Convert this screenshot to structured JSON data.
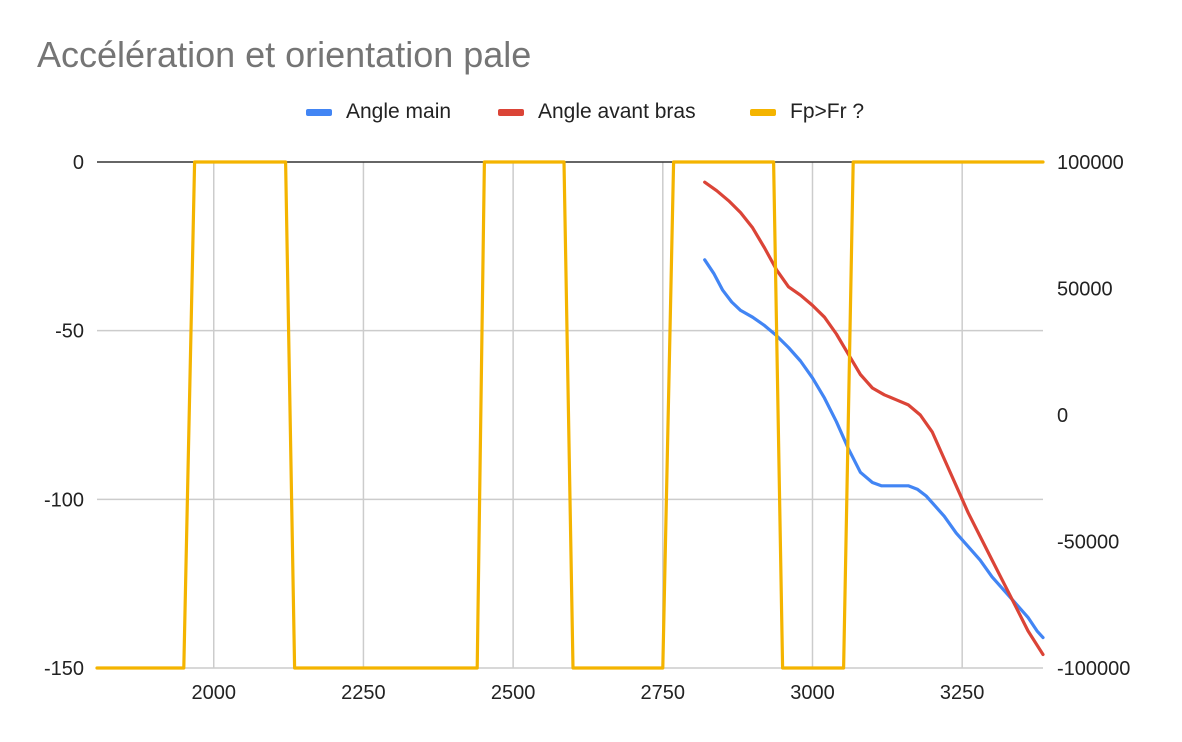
{
  "chart_data": {
    "type": "line",
    "title": "Accélération et orientation pale",
    "xlabel": "",
    "ylabel": "",
    "y2label": "",
    "xlim": [
      1805,
      3385
    ],
    "ylim": [
      -150,
      0
    ],
    "y2lim": [
      -100000,
      100000
    ],
    "x_ticks": [
      2000,
      2250,
      2500,
      2750,
      3000,
      3250
    ],
    "y_ticks": [
      0,
      -50,
      -100,
      -150
    ],
    "y2_ticks": [
      100000,
      50000,
      0,
      -50000,
      -100000
    ],
    "grid": true,
    "legend_position": "top",
    "series": [
      {
        "name": "Angle main",
        "axis": "left",
        "color": "#4285f4",
        "x": [
          2820,
          2835,
          2850,
          2865,
          2880,
          2900,
          2920,
          2940,
          2960,
          2980,
          3000,
          3020,
          3040,
          3060,
          3080,
          3100,
          3115,
          3130,
          3145,
          3160,
          3175,
          3190,
          3205,
          3220,
          3240,
          3260,
          3280,
          3300,
          3320,
          3340,
          3360,
          3375,
          3385
        ],
        "values": [
          -29,
          -33,
          -38,
          -41.5,
          -44,
          -46,
          -48.5,
          -51.5,
          -55,
          -59,
          -64,
          -70,
          -77,
          -85,
          -92,
          -95,
          -96,
          -96,
          -96,
          -96,
          -97,
          -99,
          -102,
          -105,
          -110,
          -114,
          -118,
          -123,
          -127,
          -131,
          -135,
          -139,
          -141
        ]
      },
      {
        "name": "Angle avant bras",
        "axis": "left",
        "color": "#db4437",
        "x": [
          2820,
          2840,
          2860,
          2880,
          2900,
          2920,
          2940,
          2960,
          2980,
          3000,
          3020,
          3040,
          3060,
          3080,
          3100,
          3120,
          3140,
          3160,
          3180,
          3200,
          3220,
          3240,
          3260,
          3280,
          3300,
          3320,
          3340,
          3360,
          3385
        ],
        "values": [
          -6,
          -8.5,
          -11.5,
          -15,
          -19.5,
          -25.5,
          -32,
          -37,
          -39.5,
          -42.5,
          -46,
          -51,
          -57,
          -63,
          -67,
          -69,
          -70.5,
          -72,
          -75,
          -80,
          -88,
          -96,
          -104,
          -111,
          -118,
          -125,
          -132,
          -139,
          -146
        ]
      },
      {
        "name": "Fp>Fr ?",
        "axis": "right",
        "color": "#f4b400",
        "x": [
          1805,
          1950,
          1968,
          2120,
          2135,
          2440,
          2452,
          2585,
          2600,
          2750,
          2768,
          2935,
          2950,
          3052,
          3068,
          3385
        ],
        "values": [
          -100000,
          -100000,
          100000,
          100000,
          -100000,
          -100000,
          100000,
          100000,
          -100000,
          -100000,
          100000,
          100000,
          -100000,
          -100000,
          100000,
          100000
        ]
      }
    ]
  }
}
